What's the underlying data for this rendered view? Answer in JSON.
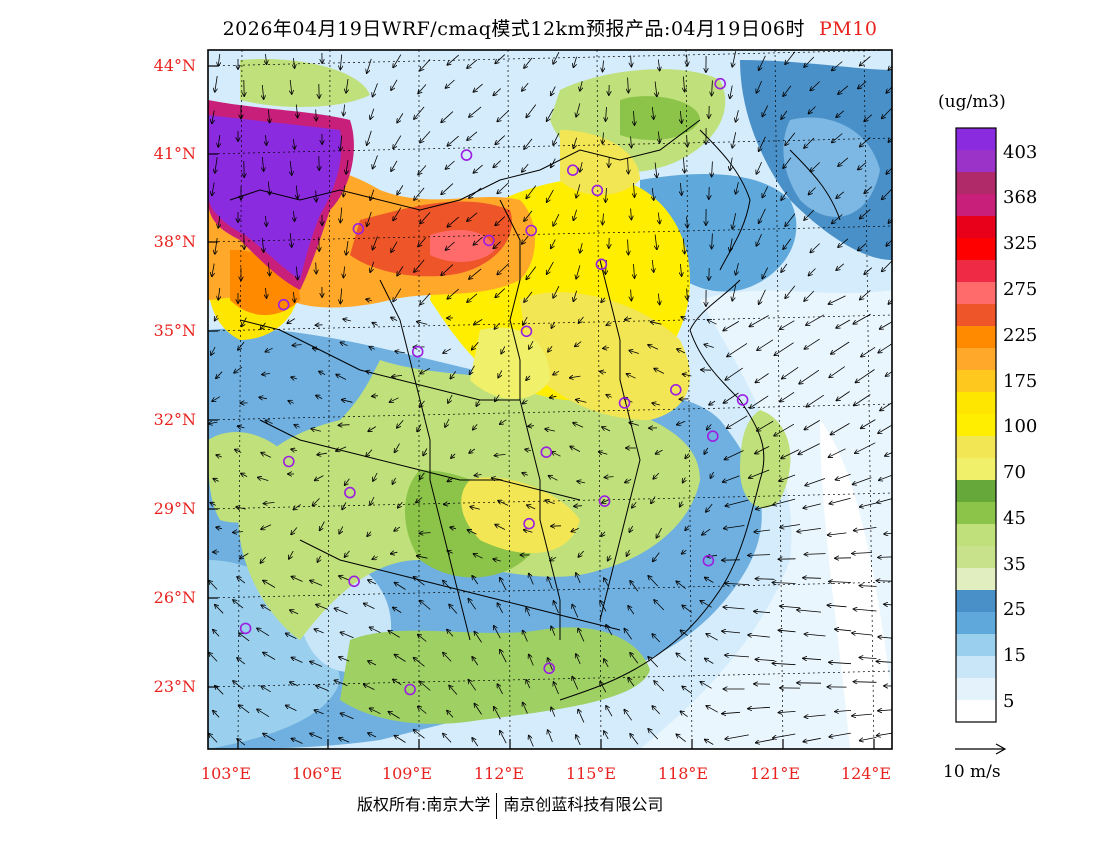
{
  "title": {
    "text": "2026年04月19日WRF/cmaq模式12km预报产品:04月19日06时",
    "pollutant": "PM10"
  },
  "map": {
    "lat_labels": [
      "44°N",
      "41°N",
      "38°N",
      "35°N",
      "32°N",
      "29°N",
      "26°N",
      "23°N"
    ],
    "lon_labels": [
      "103°E",
      "106°E",
      "109°E",
      "112°E",
      "115°E",
      "118°E",
      "121°E",
      "124°E"
    ],
    "lat_range": [
      21,
      44.5
    ],
    "lon_range": [
      103,
      124
    ],
    "colors": {
      "very_high": "#8a2be2",
      "high": "#f08c1e",
      "mid": "#ffe600",
      "low_green": "#bfe07a",
      "low_blue": "#5fa8dc",
      "clean": "#d4ecfb",
      "wind_vector": "#000000",
      "station": "#9b1fe0"
    },
    "stations": [
      {
        "lon": 118.9,
        "lat": 43.0
      },
      {
        "lon": 110.5,
        "lat": 40.8
      },
      {
        "lon": 114.0,
        "lat": 40.2
      },
      {
        "lon": 114.8,
        "lat": 39.5
      },
      {
        "lon": 106.9,
        "lat": 38.4
      },
      {
        "lon": 111.2,
        "lat": 37.9
      },
      {
        "lon": 112.6,
        "lat": 38.2
      },
      {
        "lon": 114.9,
        "lat": 37.0
      },
      {
        "lon": 104.4,
        "lat": 35.9
      },
      {
        "lon": 112.4,
        "lat": 34.8
      },
      {
        "lon": 108.8,
        "lat": 34.2
      },
      {
        "lon": 115.6,
        "lat": 32.3
      },
      {
        "lon": 117.3,
        "lat": 32.7
      },
      {
        "lon": 119.5,
        "lat": 32.3
      },
      {
        "lon": 118.5,
        "lat": 31.1
      },
      {
        "lon": 104.5,
        "lat": 30.6
      },
      {
        "lon": 113.0,
        "lat": 30.7
      },
      {
        "lon": 106.5,
        "lat": 29.5
      },
      {
        "lon": 114.9,
        "lat": 29.0
      },
      {
        "lon": 112.4,
        "lat": 28.3
      },
      {
        "lon": 118.3,
        "lat": 26.9
      },
      {
        "lon": 106.6,
        "lat": 26.5
      },
      {
        "lon": 103.0,
        "lat": 25.0
      },
      {
        "lon": 108.4,
        "lat": 22.8
      },
      {
        "lon": 113.0,
        "lat": 23.4
      }
    ]
  },
  "colorbar": {
    "unit": "(ug/m3)",
    "labels": [
      "403",
      "368",
      "325",
      "275",
      "225",
      "175",
      "100",
      "70",
      "45",
      "35",
      "25",
      "15",
      "5"
    ],
    "colors": [
      "#8b2be0",
      "#9b33c8",
      "#b02a6a",
      "#c8207a",
      "#e8001a",
      "#ff0000",
      "#ee2a45",
      "#ff6b6b",
      "#ee5528",
      "#ff8a00",
      "#ffa82a",
      "#ffc81e",
      "#ffe600",
      "#ffee00",
      "#f3e655",
      "#f0f06a",
      "#66a83a",
      "#8cc44a",
      "#bfe07a",
      "#c8e28c",
      "#e0eec0",
      "#4a90c8",
      "#5fa8dc",
      "#9ad0ee",
      "#c8e6f8",
      "#e4f2fc",
      "#ffffff"
    ]
  },
  "wind_reference": {
    "label": "10 m/s"
  },
  "footer": {
    "copyright": "版权所有:南京大学",
    "company": "南京创蓝科技有限公司"
  }
}
